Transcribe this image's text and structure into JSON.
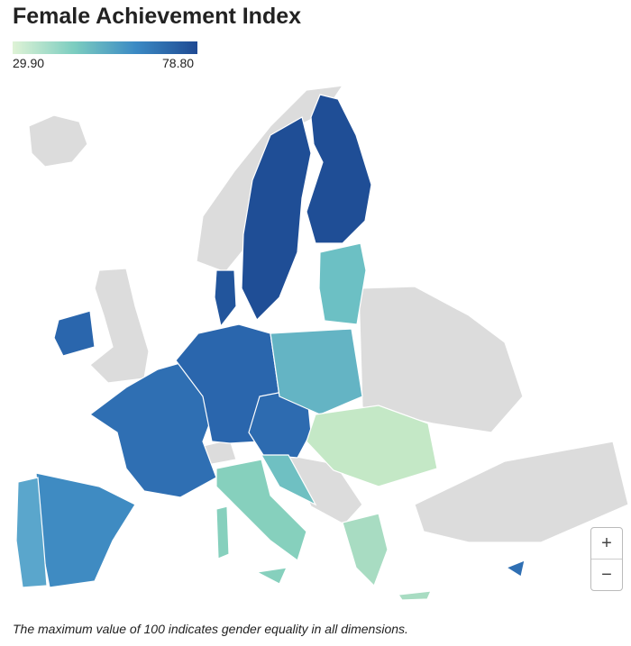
{
  "header": {
    "title": "Female Achievement Index"
  },
  "legend": {
    "min_label": "29.90",
    "max_label": "78.80"
  },
  "controls": {
    "zoom_in": "+",
    "zoom_out": "−"
  },
  "footnote": "The maximum value of 100 indicates gender equality in all dimensions."
}
